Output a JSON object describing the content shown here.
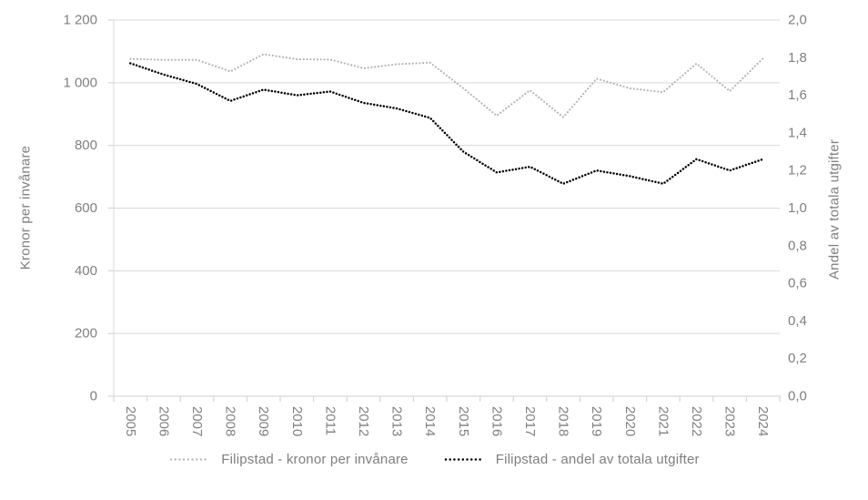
{
  "chart_data": {
    "type": "line",
    "title": "",
    "categories": [
      "2005",
      "2006",
      "2007",
      "2008",
      "2009",
      "2010",
      "2011",
      "2012",
      "2013",
      "2014",
      "2015",
      "2016",
      "2017",
      "2018",
      "2019",
      "2020",
      "2021",
      "2022",
      "2023",
      "2024"
    ],
    "series": [
      {
        "name": "Filipstad - kronor per invånare",
        "axis": "left",
        "color": "#b3b3b3",
        "dot_size": 2.2,
        "dot_gap": 3.8,
        "values": [
          1076,
          1073,
          1073,
          1036,
          1091,
          1075,
          1074,
          1046,
          1059,
          1064,
          982,
          895,
          976,
          890,
          1013,
          982,
          970,
          1061,
          973,
          1078
        ]
      },
      {
        "name": "Filipstad - andel av totala utgifter",
        "axis": "right",
        "color": "#000000",
        "dot_size": 2.5,
        "dot_gap": 3.6,
        "values": [
          1.77,
          1.71,
          1.66,
          1.57,
          1.63,
          1.6,
          1.62,
          1.56,
          1.53,
          1.48,
          1.3,
          1.19,
          1.22,
          1.13,
          1.2,
          1.17,
          1.13,
          1.26,
          1.2,
          1.26
        ]
      }
    ],
    "left_axis": {
      "label": "Kronor per invånare",
      "min": 0,
      "max": 1200,
      "tick_labels": [
        "0",
        "200",
        "400",
        "600",
        "800",
        "1 000",
        "1 200"
      ]
    },
    "right_axis": {
      "label": "Andel av totala utgifter",
      "min": 0,
      "max": 2,
      "tick_labels": [
        "0,0",
        "0,2",
        "0,4",
        "0,6",
        "0,8",
        "1,0",
        "1,2",
        "1,4",
        "1,6",
        "1,8",
        "2,0"
      ]
    },
    "grid": true,
    "legend_position": "bottom",
    "style": {
      "gridline_color": "#d9d9d9",
      "axis_color": "#d9d9d9",
      "tick_text_color": "#808080",
      "legend_text_color": "#7f7f7f",
      "background": "#ffffff"
    }
  }
}
